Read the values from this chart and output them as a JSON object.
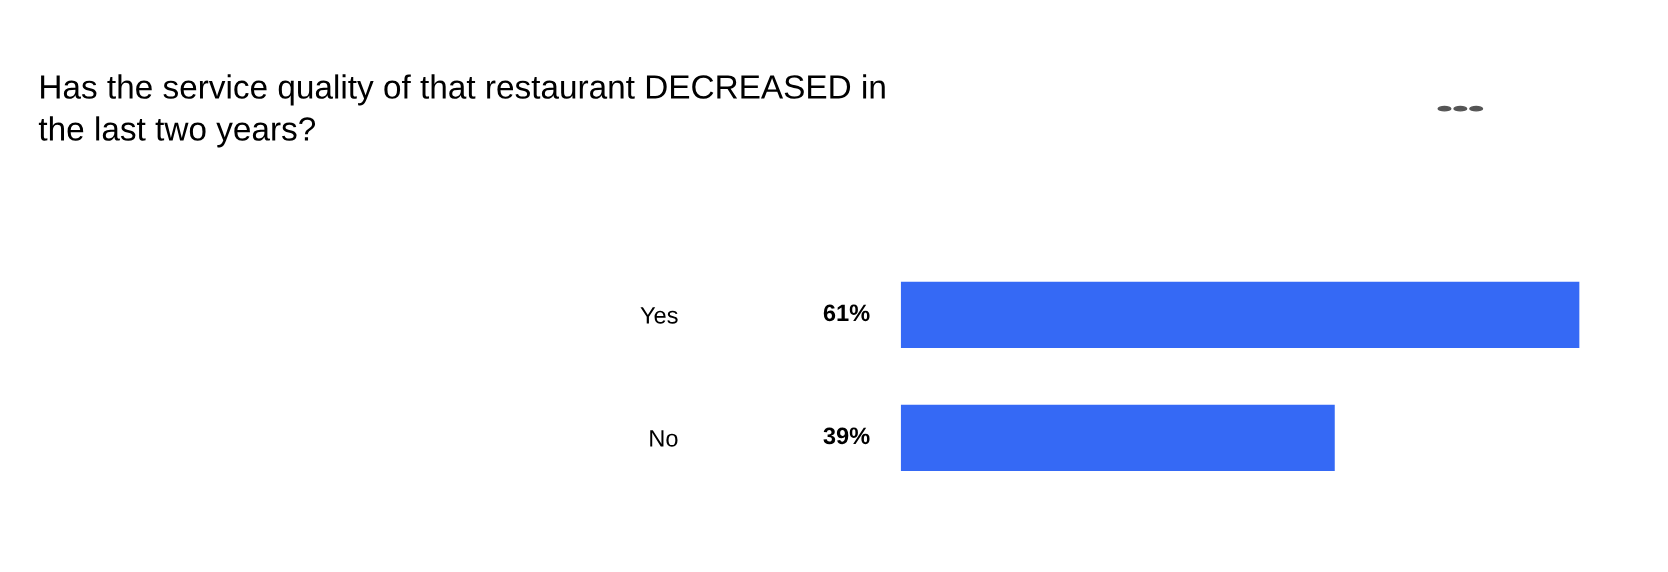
{
  "chart_data": {
    "type": "bar",
    "orientation": "horizontal",
    "title": "Has the service quality of that restaurant DECREASED in\nthe last two years?",
    "categories": [
      "Yes",
      "No"
    ],
    "values": [
      61,
      39
    ],
    "value_labels": [
      "61%",
      "39%"
    ],
    "color": "#3569f5",
    "grid": false,
    "legend": false
  }
}
